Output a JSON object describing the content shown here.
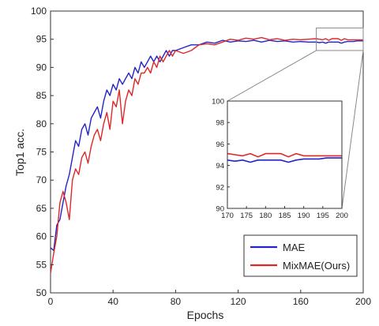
{
  "chart_data": {
    "type": "line",
    "title": "",
    "xlabel": "Epochs",
    "ylabel": "Top1 acc.",
    "xlim": [
      0,
      200
    ],
    "ylim": [
      50,
      100
    ],
    "xticks": [
      0,
      40,
      80,
      120,
      160,
      200
    ],
    "yticks": [
      50,
      55,
      60,
      65,
      70,
      75,
      80,
      85,
      90,
      95,
      100
    ],
    "grid": false,
    "legend_position": "bottom-right",
    "series": [
      {
        "name": "MAE",
        "color": "#2323c8",
        "points": [
          [
            0,
            58
          ],
          [
            2,
            57.5
          ],
          [
            4,
            62
          ],
          [
            6,
            63
          ],
          [
            8,
            66
          ],
          [
            10,
            69
          ],
          [
            12,
            71
          ],
          [
            14,
            74
          ],
          [
            16,
            77
          ],
          [
            18,
            76
          ],
          [
            20,
            79
          ],
          [
            22,
            80
          ],
          [
            24,
            78
          ],
          [
            26,
            81
          ],
          [
            28,
            82
          ],
          [
            30,
            83
          ],
          [
            32,
            81
          ],
          [
            34,
            84
          ],
          [
            36,
            86
          ],
          [
            38,
            85
          ],
          [
            40,
            87
          ],
          [
            42,
            86
          ],
          [
            44,
            88
          ],
          [
            46,
            87
          ],
          [
            48,
            88
          ],
          [
            50,
            89
          ],
          [
            52,
            88
          ],
          [
            54,
            90
          ],
          [
            56,
            89
          ],
          [
            58,
            91
          ],
          [
            60,
            90
          ],
          [
            62,
            91
          ],
          [
            64,
            92
          ],
          [
            66,
            91
          ],
          [
            68,
            92
          ],
          [
            70,
            91
          ],
          [
            72,
            92
          ],
          [
            74,
            93
          ],
          [
            76,
            92
          ],
          [
            78,
            93
          ],
          [
            80,
            93
          ],
          [
            85,
            93.5
          ],
          [
            90,
            94
          ],
          [
            95,
            94
          ],
          [
            100,
            94.5
          ],
          [
            105,
            94.3
          ],
          [
            110,
            94.8
          ],
          [
            115,
            94.5
          ],
          [
            120,
            94.7
          ],
          [
            125,
            94.6
          ],
          [
            130,
            94.8
          ],
          [
            135,
            94.5
          ],
          [
            140,
            94.8
          ],
          [
            145,
            94.6
          ],
          [
            150,
            94.7
          ],
          [
            155,
            94.5
          ],
          [
            160,
            94.6
          ],
          [
            165,
            94.5
          ],
          [
            170,
            94.5
          ],
          [
            172,
            94.4
          ],
          [
            174,
            94.5
          ],
          [
            176,
            94.3
          ],
          [
            178,
            94.5
          ],
          [
            180,
            94.5
          ],
          [
            182,
            94.5
          ],
          [
            184,
            94.5
          ],
          [
            186,
            94.3
          ],
          [
            188,
            94.5
          ],
          [
            190,
            94.6
          ],
          [
            192,
            94.6
          ],
          [
            194,
            94.6
          ],
          [
            196,
            94.7
          ],
          [
            198,
            94.7
          ],
          [
            200,
            94.7
          ]
        ]
      },
      {
        "name": "MixMAE(Ours)",
        "color": "#dc2828",
        "points": [
          [
            0,
            53.5
          ],
          [
            2,
            57
          ],
          [
            4,
            60
          ],
          [
            6,
            66
          ],
          [
            8,
            68
          ],
          [
            10,
            66
          ],
          [
            12,
            63
          ],
          [
            14,
            70
          ],
          [
            16,
            72
          ],
          [
            18,
            71
          ],
          [
            20,
            74
          ],
          [
            22,
            75
          ],
          [
            24,
            73
          ],
          [
            26,
            76
          ],
          [
            28,
            78
          ],
          [
            30,
            79
          ],
          [
            32,
            77
          ],
          [
            34,
            80
          ],
          [
            36,
            82
          ],
          [
            38,
            79
          ],
          [
            40,
            84
          ],
          [
            42,
            83
          ],
          [
            44,
            86
          ],
          [
            46,
            80
          ],
          [
            48,
            84
          ],
          [
            50,
            86
          ],
          [
            52,
            85
          ],
          [
            54,
            88
          ],
          [
            56,
            87
          ],
          [
            58,
            89
          ],
          [
            60,
            89
          ],
          [
            62,
            90
          ],
          [
            64,
            89
          ],
          [
            66,
            91
          ],
          [
            68,
            90
          ],
          [
            70,
            92
          ],
          [
            72,
            91
          ],
          [
            74,
            92
          ],
          [
            76,
            93
          ],
          [
            78,
            92
          ],
          [
            80,
            93
          ],
          [
            85,
            92.5
          ],
          [
            90,
            93
          ],
          [
            95,
            94
          ],
          [
            100,
            94.2
          ],
          [
            105,
            94
          ],
          [
            110,
            94.5
          ],
          [
            115,
            95
          ],
          [
            120,
            94.8
          ],
          [
            125,
            95.2
          ],
          [
            130,
            95
          ],
          [
            135,
            95.3
          ],
          [
            140,
            94.9
          ],
          [
            145,
            95.1
          ],
          [
            150,
            94.8
          ],
          [
            155,
            95
          ],
          [
            160,
            94.9
          ],
          [
            165,
            95
          ],
          [
            170,
            95.1
          ],
          [
            172,
            95
          ],
          [
            174,
            94.9
          ],
          [
            176,
            95.1
          ],
          [
            178,
            94.8
          ],
          [
            180,
            95.1
          ],
          [
            182,
            95.1
          ],
          [
            184,
            95.1
          ],
          [
            186,
            94.8
          ],
          [
            188,
            95.1
          ],
          [
            190,
            94.9
          ],
          [
            192,
            94.9
          ],
          [
            194,
            94.9
          ],
          [
            196,
            94.9
          ],
          [
            198,
            94.9
          ],
          [
            200,
            94.9
          ]
        ]
      }
    ],
    "inset": {
      "xlim": [
        170,
        200
      ],
      "ylim": [
        90,
        100
      ],
      "xticks": [
        170,
        175,
        180,
        185,
        190,
        195,
        200
      ],
      "yticks": [
        90,
        92,
        94,
        96,
        98,
        100
      ],
      "zoom_region": {
        "x": [
          170,
          200
        ],
        "y": [
          93,
          97
        ]
      }
    }
  }
}
